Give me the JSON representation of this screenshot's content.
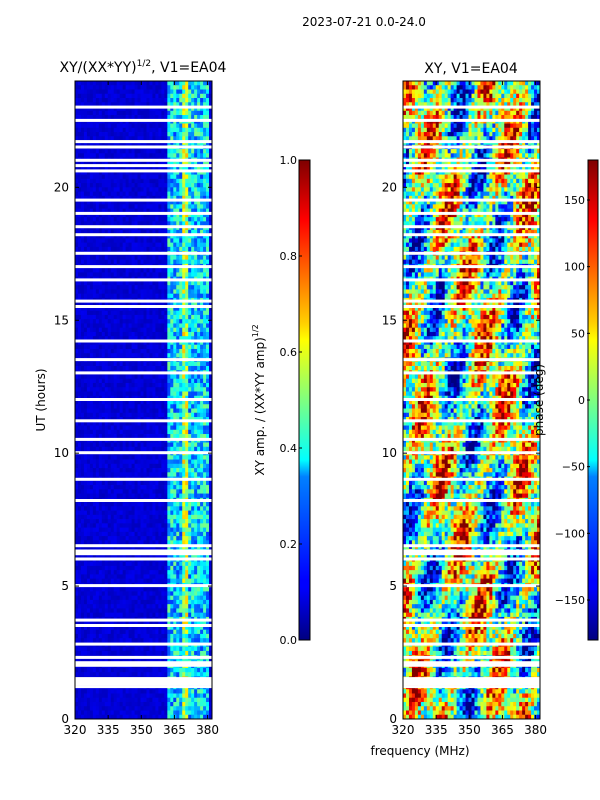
{
  "suptitle": "2023-07-21 0.0-24.0",
  "xlabel_shared": "frequency (MHz)",
  "chart_data": [
    {
      "type": "heatmap",
      "title_prefix": "XY/(XX*YY)",
      "title_exp": "1/2",
      "title_suffix": ", V1=EA04",
      "xlabel": "",
      "ylabel": "UT (hours)",
      "xlim": [
        320,
        382
      ],
      "ylim": [
        0,
        24
      ],
      "xticks": [
        320,
        335,
        350,
        365,
        380
      ],
      "yticks": [
        0,
        5,
        10,
        15,
        20
      ],
      "colorbar": {
        "label_prefix": "XY amp. / (XX*YY amp)",
        "label_exp": "1/2",
        "range": [
          0.0,
          1.0
        ],
        "ticks": [
          0.0,
          0.2,
          0.4,
          0.6,
          0.8,
          1.0
        ],
        "tick_labels": [
          "0.0",
          "0.2",
          "0.4",
          "0.6",
          "0.8",
          "1.0"
        ],
        "colormap": "jet"
      },
      "flagged_hours": [
        1.2,
        1.3,
        1.4,
        1.5,
        2.0,
        2.1,
        2.3,
        2.8,
        3.5,
        3.7,
        5.0,
        6.0,
        6.2,
        6.3,
        6.5,
        8.2,
        9.0,
        10.0,
        10.5,
        11.2,
        12.0,
        13.0,
        13.5,
        14.2,
        15.5,
        15.7,
        16.5,
        17.0,
        17.5,
        18.2,
        18.5,
        19.0,
        19.5,
        20.6,
        20.8,
        21.0,
        21.5,
        21.7,
        22.5,
        23.0
      ]
    },
    {
      "type": "heatmap",
      "title": "XY, V1=EA04",
      "xlabel": "frequency (MHz)",
      "ylabel": "",
      "xlim": [
        320,
        382
      ],
      "ylim": [
        0,
        24
      ],
      "xticks": [
        320,
        335,
        350,
        365,
        380
      ],
      "yticks": [
        0,
        5,
        10,
        15,
        20
      ],
      "colorbar": {
        "label": "phase (deg)",
        "range": [
          -180,
          180
        ],
        "ticks": [
          -150,
          -100,
          -50,
          0,
          50,
          100,
          150
        ],
        "tick_labels": [
          "−150",
          "−100",
          "−50",
          "0",
          "50",
          "100",
          "150"
        ],
        "colormap": "jet"
      },
      "flagged_hours": [
        1.2,
        1.3,
        1.4,
        1.5,
        2.0,
        2.1,
        2.3,
        2.8,
        3.5,
        3.7,
        5.0,
        6.0,
        6.2,
        6.3,
        6.5,
        8.2,
        9.0,
        10.0,
        10.5,
        11.2,
        12.0,
        13.0,
        13.5,
        14.2,
        15.5,
        15.7,
        16.5,
        17.0,
        17.5,
        18.2,
        18.5,
        19.0,
        19.5,
        20.6,
        20.8,
        21.0,
        21.5,
        21.7,
        22.5,
        23.0
      ]
    }
  ]
}
